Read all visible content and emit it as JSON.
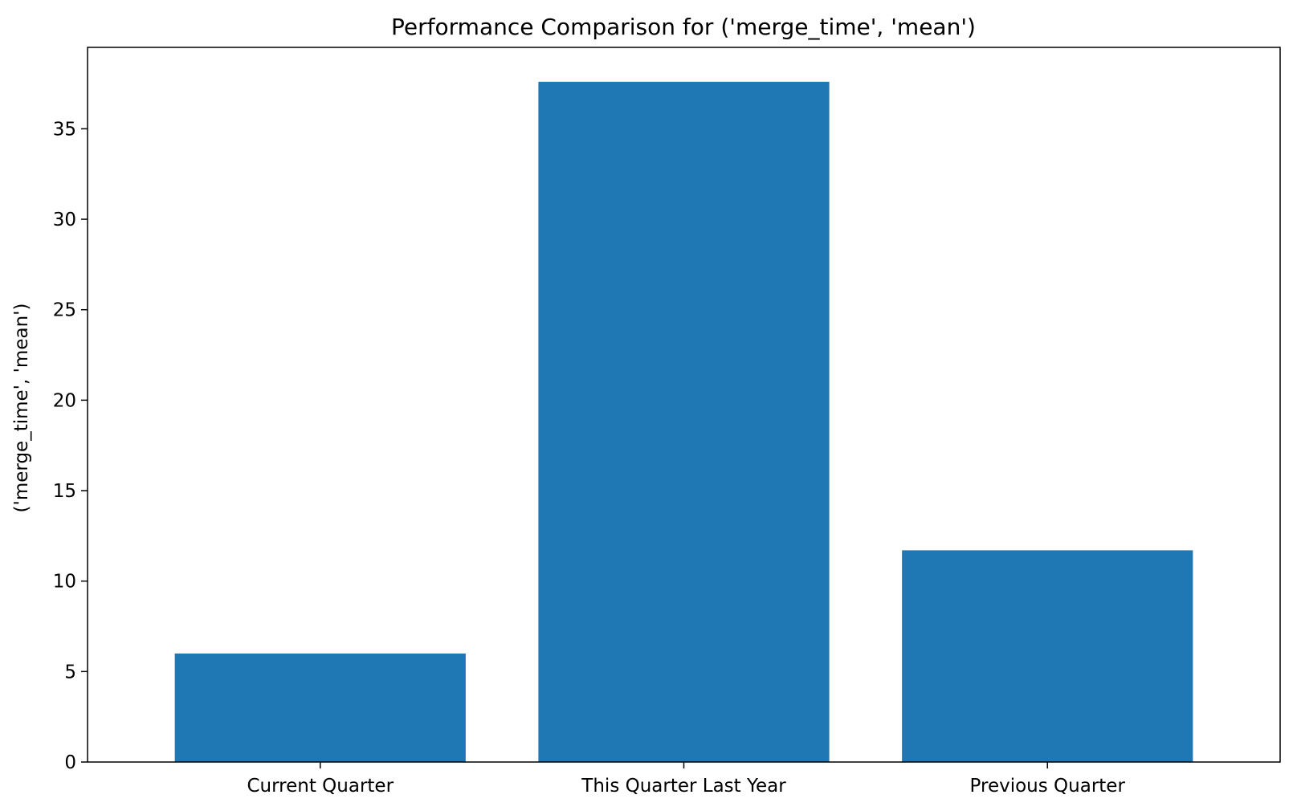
{
  "chart_data": {
    "type": "bar",
    "title": "Performance Comparison for ('merge_time', 'mean')",
    "xlabel": "",
    "ylabel": "('merge_time', 'mean')",
    "categories": [
      "Current Quarter",
      "This Quarter Last Year",
      "Previous Quarter"
    ],
    "values": [
      6.0,
      37.6,
      11.7
    ],
    "ylim": [
      0,
      39.5
    ],
    "yticks": [
      0,
      5,
      10,
      15,
      20,
      25,
      30,
      35
    ],
    "grid": false,
    "legend": "none",
    "bar_color": "#1f77b4"
  }
}
